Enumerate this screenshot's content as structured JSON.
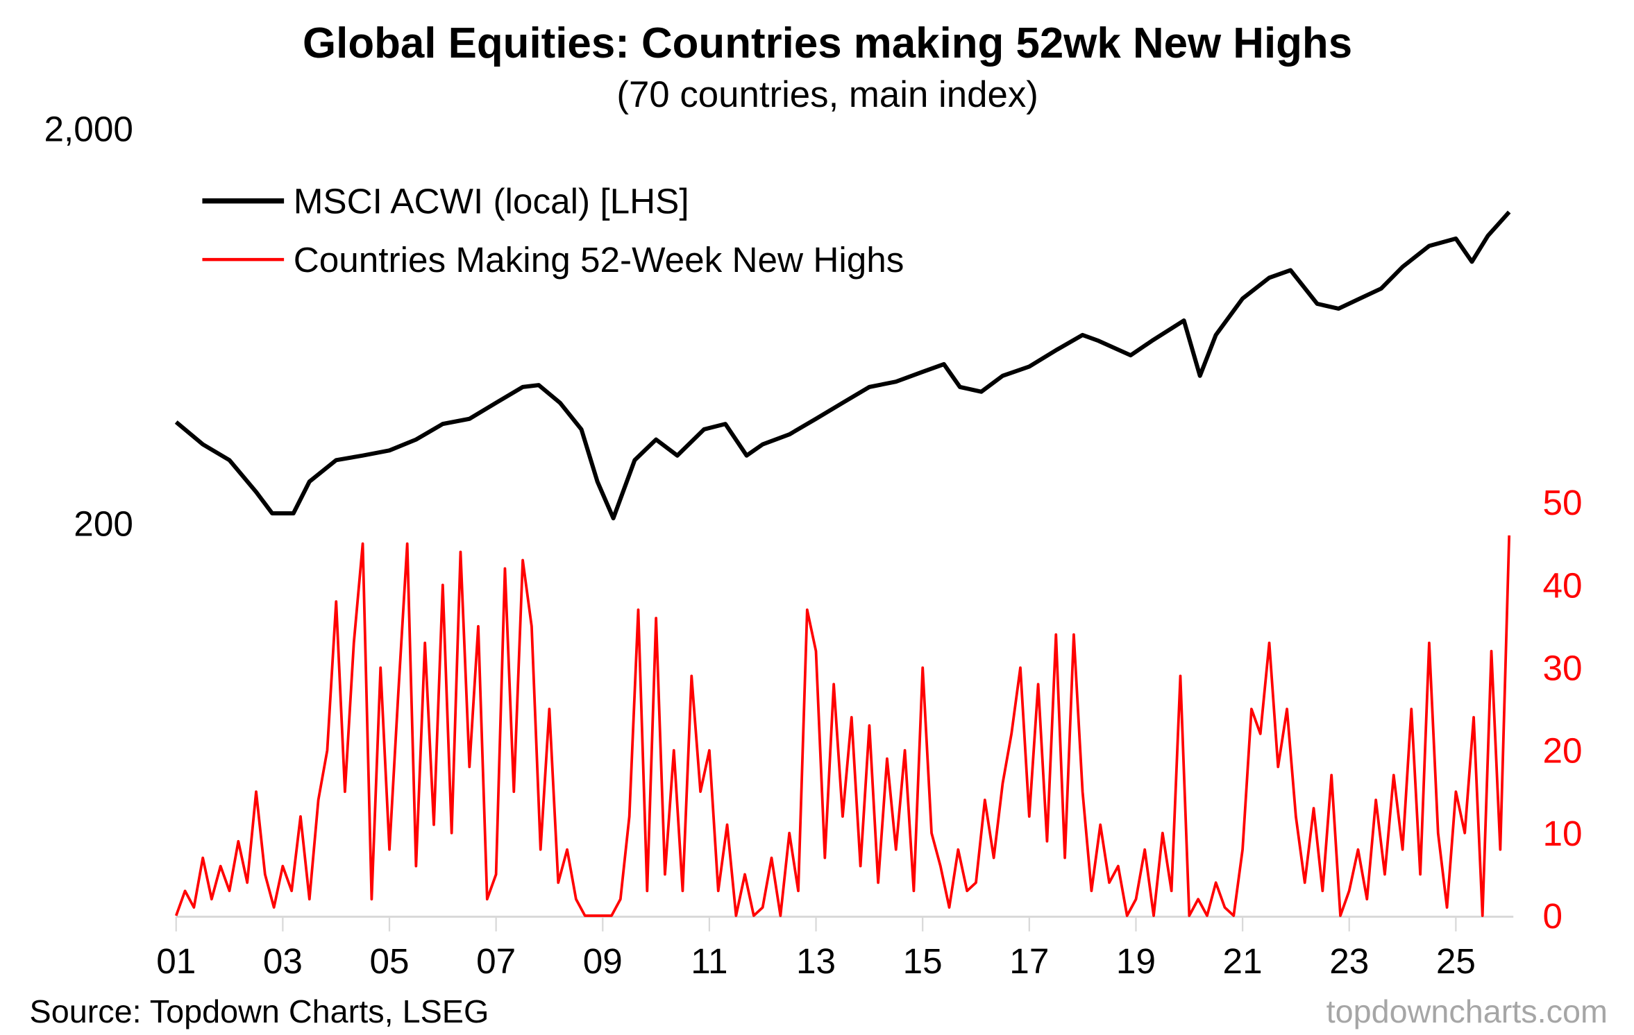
{
  "chart_data": {
    "type": "line",
    "title": "Global Equities: Countries making 52wk New Highs",
    "subtitle": "(70 countries, main index)",
    "source": "Source: Topdown Charts, LSEG",
    "watermark": "topdowncharts.com",
    "legend_position": "top-left",
    "x_axis": {
      "range": [
        2001,
        2026.1
      ],
      "ticks": [
        2001,
        2003,
        2005,
        2007,
        2009,
        2011,
        2013,
        2015,
        2017,
        2019,
        2021,
        2023,
        2025
      ],
      "tick_labels": [
        "01",
        "03",
        "05",
        "07",
        "09",
        "11",
        "13",
        "15",
        "17",
        "19",
        "21",
        "23",
        "25"
      ]
    },
    "left_axis": {
      "scale": "log",
      "ticks": [
        2000,
        200
      ],
      "tick_labels": [
        "2,000",
        "200"
      ]
    },
    "right_axis": {
      "range": [
        0,
        50
      ],
      "ticks": [
        50,
        40,
        30,
        20,
        10,
        0
      ],
      "tick_labels": [
        "50",
        "40",
        "30",
        "20",
        "10",
        "0"
      ],
      "color": "#ff0000"
    },
    "series": [
      {
        "name": "MSCI ACWI (local) [LHS]",
        "axis": "left",
        "color": "#000000",
        "x": [
          2001.0,
          2001.5,
          2002.0,
          2002.5,
          2002.8,
          2003.2,
          2003.5,
          2004.0,
          2004.5,
          2005.0,
          2005.5,
          2006.0,
          2006.5,
          2007.0,
          2007.5,
          2007.8,
          2008.2,
          2008.6,
          2008.9,
          2009.2,
          2009.6,
          2010.0,
          2010.4,
          2010.9,
          2011.3,
          2011.7,
          2012.0,
          2012.5,
          2013.0,
          2013.5,
          2014.0,
          2014.5,
          2015.0,
          2015.4,
          2015.7,
          2016.1,
          2016.5,
          2017.0,
          2017.5,
          2018.0,
          2018.3,
          2018.9,
          2019.3,
          2019.9,
          2020.2,
          2020.5,
          2021.0,
          2021.5,
          2021.9,
          2022.4,
          2022.8,
          2023.2,
          2023.6,
          2024.0,
          2024.5,
          2025.0,
          2025.3,
          2025.6,
          2026.0
        ],
        "values": [
          361,
          317,
          289,
          240,
          212,
          212,
          255,
          289,
          297,
          306,
          326,
          357,
          368,
          404,
          443,
          448,
          404,
          346,
          255,
          206,
          289,
          326,
          297,
          346,
          357,
          297,
          317,
          336,
          368,
          404,
          443,
          457,
          484,
          506,
          443,
          431,
          473,
          499,
          549,
          600,
          580,
          533,
          580,
          653,
          473,
          600,
          742,
          838,
          876,
          720,
          700,
          742,
          787,
          893,
          1009,
          1053,
          920,
          1070,
          1230
        ]
      },
      {
        "name": "Countries Making 52-Week New Highs",
        "axis": "right",
        "color": "#ff0000",
        "x_start": 2001,
        "points_per_year": 6,
        "values": [
          0,
          3,
          1,
          7,
          2,
          6,
          3,
          9,
          4,
          15,
          5,
          1,
          6,
          3,
          12,
          2,
          14,
          20,
          38,
          15,
          33,
          45,
          2,
          30,
          8,
          27,
          45,
          6,
          33,
          11,
          40,
          10,
          44,
          18,
          35,
          2,
          5,
          42,
          15,
          43,
          35,
          8,
          25,
          4,
          8,
          2,
          0,
          0,
          0,
          0,
          2,
          12,
          37,
          3,
          36,
          5,
          20,
          3,
          29,
          15,
          20,
          3,
          11,
          0,
          5,
          0,
          1,
          7,
          0,
          10,
          3,
          37,
          32,
          7,
          28,
          12,
          24,
          6,
          23,
          4,
          19,
          8,
          20,
          3,
          30,
          10,
          6,
          1,
          8,
          3,
          4,
          14,
          7,
          16,
          22,
          30,
          12,
          28,
          9,
          34,
          7,
          34,
          15,
          3,
          11,
          4,
          6,
          0,
          2,
          8,
          0,
          10,
          3,
          29,
          0,
          2,
          0,
          4,
          1,
          0,
          8,
          25,
          22,
          33,
          18,
          25,
          12,
          4,
          13,
          3,
          17,
          0,
          3,
          8,
          2,
          14,
          5,
          17,
          8,
          25,
          5,
          33,
          10,
          1,
          15,
          10,
          24,
          0,
          32,
          8,
          46
        ]
      }
    ]
  }
}
